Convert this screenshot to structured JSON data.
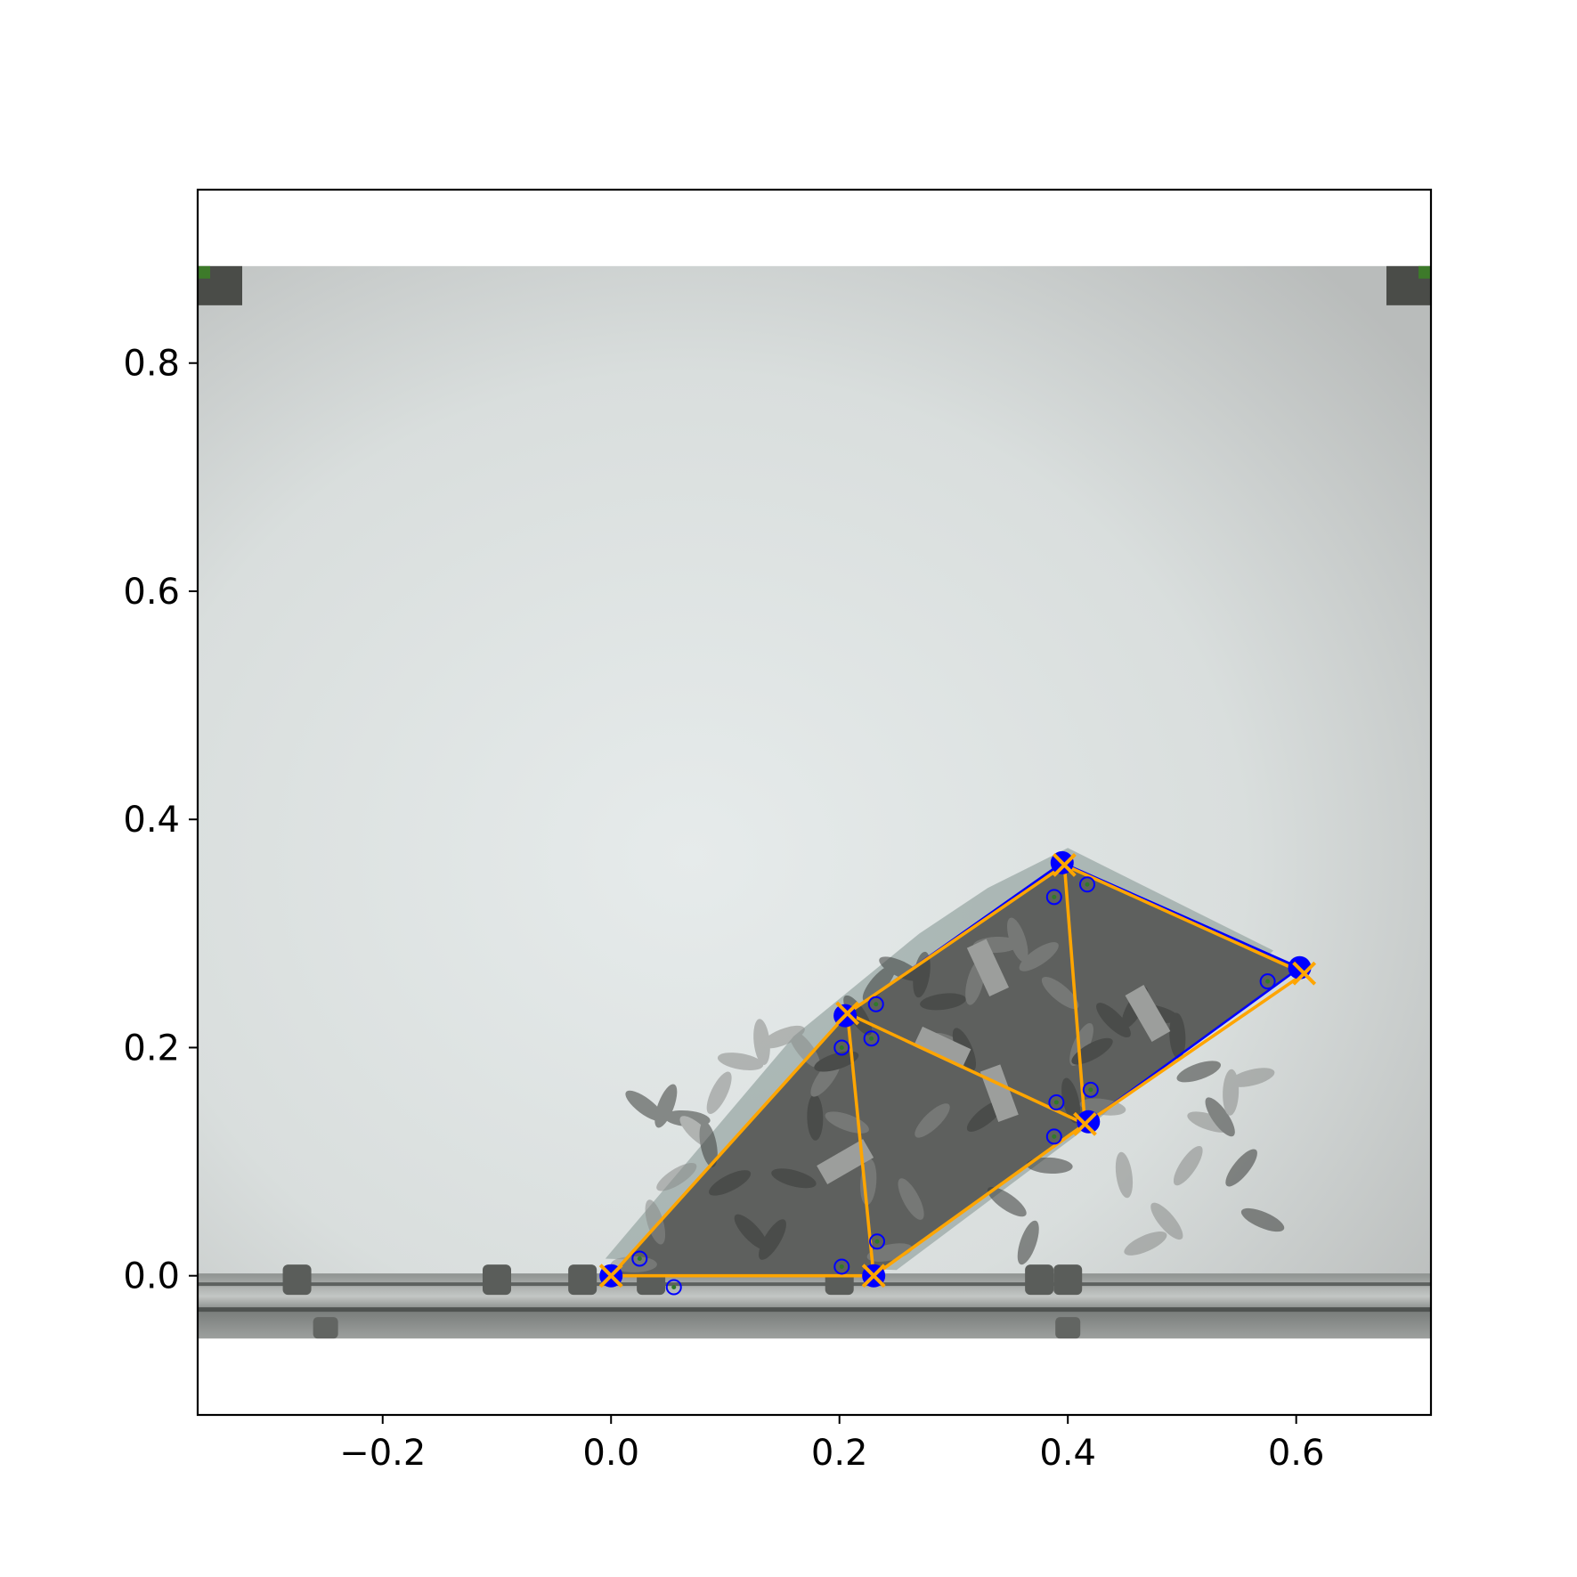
{
  "chart_data": {
    "type": "scatter",
    "title": "",
    "xlabel": "",
    "ylabel": "",
    "xlim": [
      -0.362,
      0.718
    ],
    "ylim": [
      -0.122,
      0.952
    ],
    "xticks": [
      -0.2,
      0.0,
      0.2,
      0.4,
      0.6
    ],
    "yticks": [
      0.0,
      0.2,
      0.4,
      0.6,
      0.8
    ],
    "xtick_labels": [
      "−0.2",
      "0.0",
      "0.2",
      "0.4",
      "0.6"
    ],
    "ytick_labels": [
      "0.0",
      "0.2",
      "0.4",
      "0.6",
      "0.8"
    ],
    "grid": false,
    "legend": false,
    "background_photo": {
      "extent_x": [
        -0.362,
        0.718
      ],
      "extent_y": [
        -0.055,
        0.885
      ],
      "description": "overhead camera photo of modular robot lattice on a white table with rails along the bottom"
    },
    "series": [
      {
        "marker": "circle",
        "color": "#0000ff",
        "points": [
          {
            "x": 0.0,
            "y": 0.0
          },
          {
            "x": 0.23,
            "y": 0.0
          },
          {
            "x": 0.205,
            "y": 0.228
          },
          {
            "x": 0.418,
            "y": 0.135
          },
          {
            "x": 0.395,
            "y": 0.362
          },
          {
            "x": 0.603,
            "y": 0.27
          }
        ]
      },
      {
        "marker": "x",
        "color": "#ffa500",
        "points": [
          {
            "x": 0.0,
            "y": 0.0
          },
          {
            "x": 0.23,
            "y": 0.0
          },
          {
            "x": 0.207,
            "y": 0.23
          },
          {
            "x": 0.415,
            "y": 0.133
          },
          {
            "x": 0.397,
            "y": 0.36
          },
          {
            "x": 0.607,
            "y": 0.265
          }
        ]
      },
      {
        "marker": "small-circle",
        "color": "#0000ff",
        "points": [
          {
            "x": 0.025,
            "y": 0.015
          },
          {
            "x": 0.055,
            "y": -0.01
          },
          {
            "x": 0.202,
            "y": 0.008
          },
          {
            "x": 0.233,
            "y": 0.03
          },
          {
            "x": 0.202,
            "y": 0.2
          },
          {
            "x": 0.228,
            "y": 0.208
          },
          {
            "x": 0.232,
            "y": 0.238
          },
          {
            "x": 0.39,
            "y": 0.152
          },
          {
            "x": 0.388,
            "y": 0.122
          },
          {
            "x": 0.42,
            "y": 0.163
          },
          {
            "x": 0.388,
            "y": 0.332
          },
          {
            "x": 0.417,
            "y": 0.343
          },
          {
            "x": 0.575,
            "y": 0.258
          }
        ]
      }
    ],
    "edges_blue": [
      [
        0,
        1
      ],
      [
        1,
        3
      ],
      [
        3,
        5
      ],
      [
        5,
        4
      ],
      [
        4,
        2
      ],
      [
        2,
        0
      ]
    ],
    "edges_orange": [
      [
        0,
        1
      ],
      [
        0,
        2
      ],
      [
        1,
        2
      ],
      [
        1,
        3
      ],
      [
        2,
        3
      ],
      [
        2,
        4
      ],
      [
        3,
        4
      ],
      [
        3,
        5
      ],
      [
        4,
        5
      ]
    ]
  }
}
